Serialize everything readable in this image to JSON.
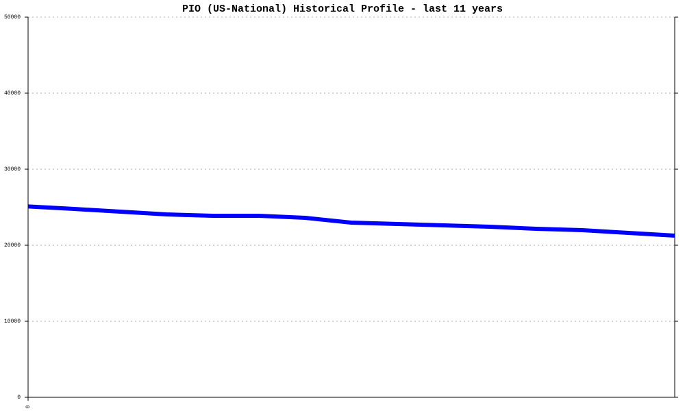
{
  "chart_data": {
    "type": "line",
    "title": "PIO (US-National) Historical Profile - last 11 years",
    "categories": [
      "0",
      null,
      null,
      null,
      null,
      null,
      null,
      null,
      null,
      null,
      null,
      null,
      null,
      null,
      null
    ],
    "series": [
      {
        "color": "#0000ff",
        "values": [
          25100,
          24770,
          24410,
          24050,
          23870,
          23870,
          23600,
          22970,
          22790,
          22610,
          22430,
          22160,
          21980,
          21620,
          21260
        ]
      }
    ],
    "ylim": [
      0,
      50000
    ],
    "yticks": [
      0,
      10000,
      20000,
      30000,
      40000,
      50000
    ],
    "grid": true
  }
}
